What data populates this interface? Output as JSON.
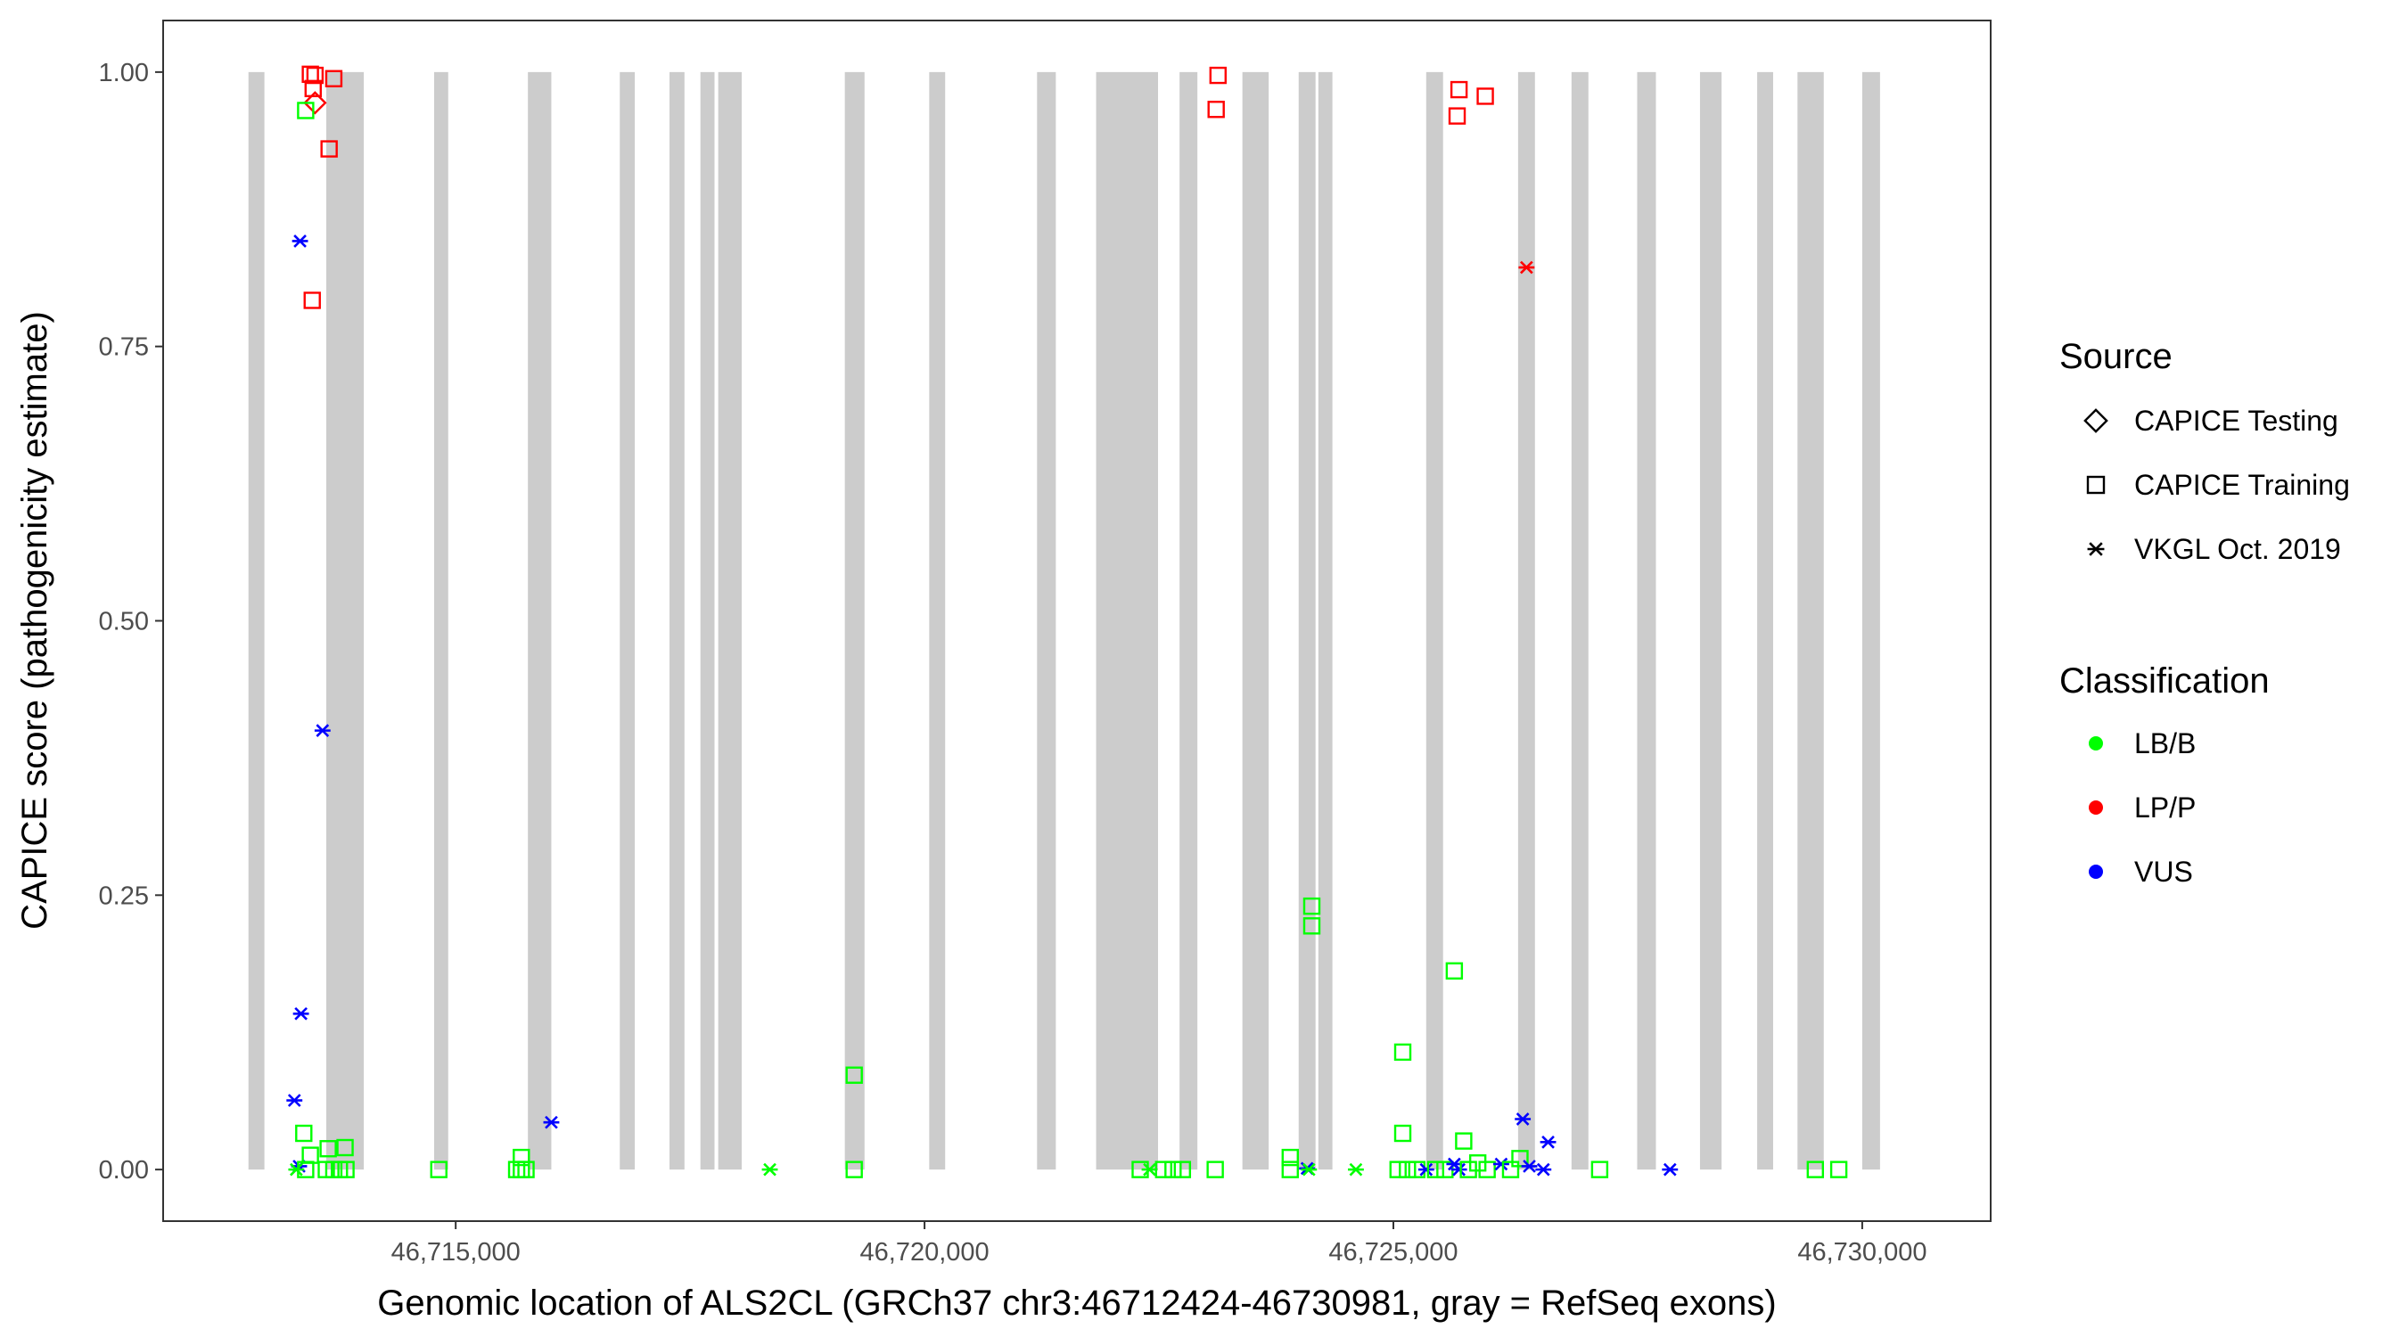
{
  "chart_data": {
    "type": "scatter",
    "xlabel": "Genomic location of ALS2CL (GRCh37 chr3:46712424-46730981, gray = RefSeq exons)",
    "ylabel": "CAPICE score (pathogenicity estimate)",
    "xlim": [
      46711880,
      46731370
    ],
    "ylim": [
      -0.047,
      1.047
    ],
    "x_ticks": [
      46715000,
      46720000,
      46725000,
      46730000
    ],
    "x_tick_labels": [
      "46,715,000",
      "46,720,000",
      "46,725,000",
      "46,730,000"
    ],
    "y_ticks": [
      0,
      0.25,
      0.5,
      0.75,
      1.0
    ],
    "y_tick_labels": [
      "0.00",
      "0.25",
      "0.50",
      "0.75",
      "1.00"
    ],
    "grid": false,
    "exons": [
      [
        46712790,
        46712960
      ],
      [
        46713620,
        46714020
      ],
      [
        46714770,
        46714920
      ],
      [
        46715770,
        46716020
      ],
      [
        46716750,
        46716910
      ],
      [
        46717280,
        46717440
      ],
      [
        46717610,
        46717760
      ],
      [
        46717800,
        46718050
      ],
      [
        46719150,
        46719360
      ],
      [
        46720050,
        46720220
      ],
      [
        46721200,
        46721400
      ],
      [
        46721830,
        46722490
      ],
      [
        46722720,
        46722910
      ],
      [
        46723390,
        46723670
      ],
      [
        46723990,
        46724170
      ],
      [
        46724200,
        46724350
      ],
      [
        46725350,
        46725530
      ],
      [
        46726330,
        46726510
      ],
      [
        46726900,
        46727080
      ],
      [
        46727600,
        46727800
      ],
      [
        46728270,
        46728500
      ],
      [
        46728880,
        46729050
      ],
      [
        46729310,
        46729590
      ],
      [
        46730000,
        46730190
      ]
    ],
    "legend": {
      "position": "right",
      "source_title": "Source",
      "source_entries": [
        "CAPICE Testing",
        "CAPICE Training",
        "VKGL Oct. 2019"
      ],
      "class_title": "Classification",
      "class_entries": [
        "LB/B",
        "LP/P",
        "VUS"
      ]
    },
    "colors": {
      "LB/B": "#00ff00",
      "LP/P": "#ff0000",
      "VUS": "#0000ff",
      "exon": "#cccccc"
    },
    "points": [
      {
        "x": 46713450,
        "y": 0.998,
        "source": "CAPICE Training",
        "class": "LP/P"
      },
      {
        "x": 46713500,
        "y": 0.997,
        "source": "CAPICE Training",
        "class": "LP/P"
      },
      {
        "x": 46713480,
        "y": 0.985,
        "source": "CAPICE Training",
        "class": "LP/P"
      },
      {
        "x": 46713700,
        "y": 0.994,
        "source": "CAPICE Training",
        "class": "LP/P"
      },
      {
        "x": 46713650,
        "y": 0.93,
        "source": "CAPICE Training",
        "class": "LP/P"
      },
      {
        "x": 46713470,
        "y": 0.792,
        "source": "CAPICE Training",
        "class": "LP/P"
      },
      {
        "x": 46713500,
        "y": 0.972,
        "source": "CAPICE Testing",
        "class": "LP/P"
      },
      {
        "x": 46713400,
        "y": 0.965,
        "source": "CAPICE Training",
        "class": "LB/B"
      },
      {
        "x": 46713340,
        "y": 0.846,
        "source": "VKGL Oct. 2019",
        "class": "VUS"
      },
      {
        "x": 46713580,
        "y": 0.4,
        "source": "VKGL Oct. 2019",
        "class": "VUS"
      },
      {
        "x": 46713350,
        "y": 0.142,
        "source": "VKGL Oct. 2019",
        "class": "VUS"
      },
      {
        "x": 46713280,
        "y": 0.063,
        "source": "VKGL Oct. 2019",
        "class": "VUS"
      },
      {
        "x": 46713330,
        "y": 0.003,
        "source": "VKGL Oct. 2019",
        "class": "VUS"
      },
      {
        "x": 46713380,
        "y": 0.033,
        "source": "CAPICE Training",
        "class": "LB/B"
      },
      {
        "x": 46713640,
        "y": 0.019,
        "source": "CAPICE Training",
        "class": "LB/B"
      },
      {
        "x": 46713820,
        "y": 0.02,
        "source": "CAPICE Training",
        "class": "LB/B"
      },
      {
        "x": 46713450,
        "y": 0.013,
        "source": "CAPICE Training",
        "class": "LB/B"
      },
      {
        "x": 46713300,
        "y": 0.0,
        "source": "VKGL Oct. 2019",
        "class": "LB/B"
      },
      {
        "x": 46713400,
        "y": 0.0,
        "source": "CAPICE Training",
        "class": "LB/B"
      },
      {
        "x": 46713620,
        "y": 0.0,
        "source": "CAPICE Training",
        "class": "LB/B"
      },
      {
        "x": 46713700,
        "y": 0.0,
        "source": "CAPICE Training",
        "class": "LB/B"
      },
      {
        "x": 46713760,
        "y": 0.0,
        "source": "CAPICE Training",
        "class": "LB/B"
      },
      {
        "x": 46713830,
        "y": 0.0,
        "source": "CAPICE Training",
        "class": "LB/B"
      },
      {
        "x": 46714820,
        "y": 0.0,
        "source": "CAPICE Training",
        "class": "LB/B"
      },
      {
        "x": 46715700,
        "y": 0.011,
        "source": "CAPICE Training",
        "class": "LB/B"
      },
      {
        "x": 46715650,
        "y": 0.0,
        "source": "CAPICE Training",
        "class": "LB/B"
      },
      {
        "x": 46715700,
        "y": 0.0,
        "source": "CAPICE Training",
        "class": "LB/B"
      },
      {
        "x": 46715750,
        "y": 0.0,
        "source": "CAPICE Training",
        "class": "LB/B"
      },
      {
        "x": 46716020,
        "y": 0.043,
        "source": "VKGL Oct. 2019",
        "class": "VUS"
      },
      {
        "x": 46718350,
        "y": 0.0,
        "source": "VKGL Oct. 2019",
        "class": "LB/B"
      },
      {
        "x": 46719250,
        "y": 0.086,
        "source": "CAPICE Training",
        "class": "LB/B"
      },
      {
        "x": 46719250,
        "y": 0.0,
        "source": "CAPICE Training",
        "class": "LB/B"
      },
      {
        "x": 46722300,
        "y": 0.0,
        "source": "CAPICE Training",
        "class": "LB/B"
      },
      {
        "x": 46722400,
        "y": 0.0,
        "source": "VKGL Oct. 2019",
        "class": "LB/B"
      },
      {
        "x": 46722550,
        "y": 0.0,
        "source": "CAPICE Training",
        "class": "LB/B"
      },
      {
        "x": 46722650,
        "y": 0.0,
        "source": "CAPICE Training",
        "class": "LB/B"
      },
      {
        "x": 46722750,
        "y": 0.0,
        "source": "CAPICE Training",
        "class": "LB/B"
      },
      {
        "x": 46723130,
        "y": 0.997,
        "source": "CAPICE Training",
        "class": "LP/P"
      },
      {
        "x": 46723110,
        "y": 0.966,
        "source": "CAPICE Training",
        "class": "LP/P"
      },
      {
        "x": 46723100,
        "y": 0.0,
        "source": "CAPICE Training",
        "class": "LB/B"
      },
      {
        "x": 46723900,
        "y": 0.011,
        "source": "CAPICE Training",
        "class": "LB/B"
      },
      {
        "x": 46723900,
        "y": 0.0,
        "source": "CAPICE Training",
        "class": "LB/B"
      },
      {
        "x": 46724130,
        "y": 0.24,
        "source": "CAPICE Training",
        "class": "LB/B"
      },
      {
        "x": 46724130,
        "y": 0.222,
        "source": "CAPICE Training",
        "class": "LB/B"
      },
      {
        "x": 46724080,
        "y": 0.001,
        "source": "VKGL Oct. 2019",
        "class": "VUS"
      },
      {
        "x": 46724100,
        "y": 0.0,
        "source": "VKGL Oct. 2019",
        "class": "LB/B"
      },
      {
        "x": 46724600,
        "y": 0.0,
        "source": "VKGL Oct. 2019",
        "class": "LB/B"
      },
      {
        "x": 46725100,
        "y": 0.107,
        "source": "CAPICE Training",
        "class": "LB/B"
      },
      {
        "x": 46725100,
        "y": 0.033,
        "source": "CAPICE Training",
        "class": "LB/B"
      },
      {
        "x": 46725050,
        "y": 0.0,
        "source": "CAPICE Training",
        "class": "LB/B"
      },
      {
        "x": 46725150,
        "y": 0.0,
        "source": "CAPICE Training",
        "class": "LB/B"
      },
      {
        "x": 46725250,
        "y": 0.0,
        "source": "CAPICE Training",
        "class": "LB/B"
      },
      {
        "x": 46725350,
        "y": 0.0,
        "source": "VKGL Oct. 2019",
        "class": "VUS"
      },
      {
        "x": 46725450,
        "y": 0.0,
        "source": "CAPICE Training",
        "class": "LB/B"
      },
      {
        "x": 46725550,
        "y": 0.0,
        "source": "CAPICE Training",
        "class": "LB/B"
      },
      {
        "x": 46725650,
        "y": 0.181,
        "source": "CAPICE Training",
        "class": "LB/B"
      },
      {
        "x": 46725700,
        "y": 0.984,
        "source": "CAPICE Training",
        "class": "LP/P"
      },
      {
        "x": 46725680,
        "y": 0.96,
        "source": "CAPICE Training",
        "class": "LP/P"
      },
      {
        "x": 46725650,
        "y": 0.005,
        "source": "VKGL Oct. 2019",
        "class": "VUS"
      },
      {
        "x": 46725700,
        "y": 0.0,
        "source": "VKGL Oct. 2019",
        "class": "VUS"
      },
      {
        "x": 46725750,
        "y": 0.026,
        "source": "CAPICE Training",
        "class": "LB/B"
      },
      {
        "x": 46725800,
        "y": 0.0,
        "source": "CAPICE Training",
        "class": "LB/B"
      },
      {
        "x": 46725900,
        "y": 0.006,
        "source": "CAPICE Training",
        "class": "LB/B"
      },
      {
        "x": 46725980,
        "y": 0.978,
        "source": "CAPICE Training",
        "class": "LP/P"
      },
      {
        "x": 46726000,
        "y": 0.0,
        "source": "CAPICE Training",
        "class": "LB/B"
      },
      {
        "x": 46726150,
        "y": 0.005,
        "source": "VKGL Oct. 2019",
        "class": "VUS"
      },
      {
        "x": 46726250,
        "y": 0.0,
        "source": "CAPICE Training",
        "class": "LB/B"
      },
      {
        "x": 46726350,
        "y": 0.01,
        "source": "CAPICE Training",
        "class": "LB/B"
      },
      {
        "x": 46726380,
        "y": 0.046,
        "source": "VKGL Oct. 2019",
        "class": "VUS"
      },
      {
        "x": 46726420,
        "y": 0.822,
        "source": "VKGL Oct. 2019",
        "class": "LP/P"
      },
      {
        "x": 46726450,
        "y": 0.003,
        "source": "VKGL Oct. 2019",
        "class": "VUS"
      },
      {
        "x": 46726600,
        "y": 0.0,
        "source": "VKGL Oct. 2019",
        "class": "VUS"
      },
      {
        "x": 46726650,
        "y": 0.025,
        "source": "VKGL Oct. 2019",
        "class": "VUS"
      },
      {
        "x": 46727200,
        "y": 0.0,
        "source": "CAPICE Training",
        "class": "LB/B"
      },
      {
        "x": 46727950,
        "y": 0.0,
        "source": "VKGL Oct. 2019",
        "class": "VUS"
      },
      {
        "x": 46729500,
        "y": 0.0,
        "source": "CAPICE Training",
        "class": "LB/B"
      },
      {
        "x": 46729750,
        "y": 0.0,
        "source": "CAPICE Training",
        "class": "LB/B"
      }
    ]
  }
}
